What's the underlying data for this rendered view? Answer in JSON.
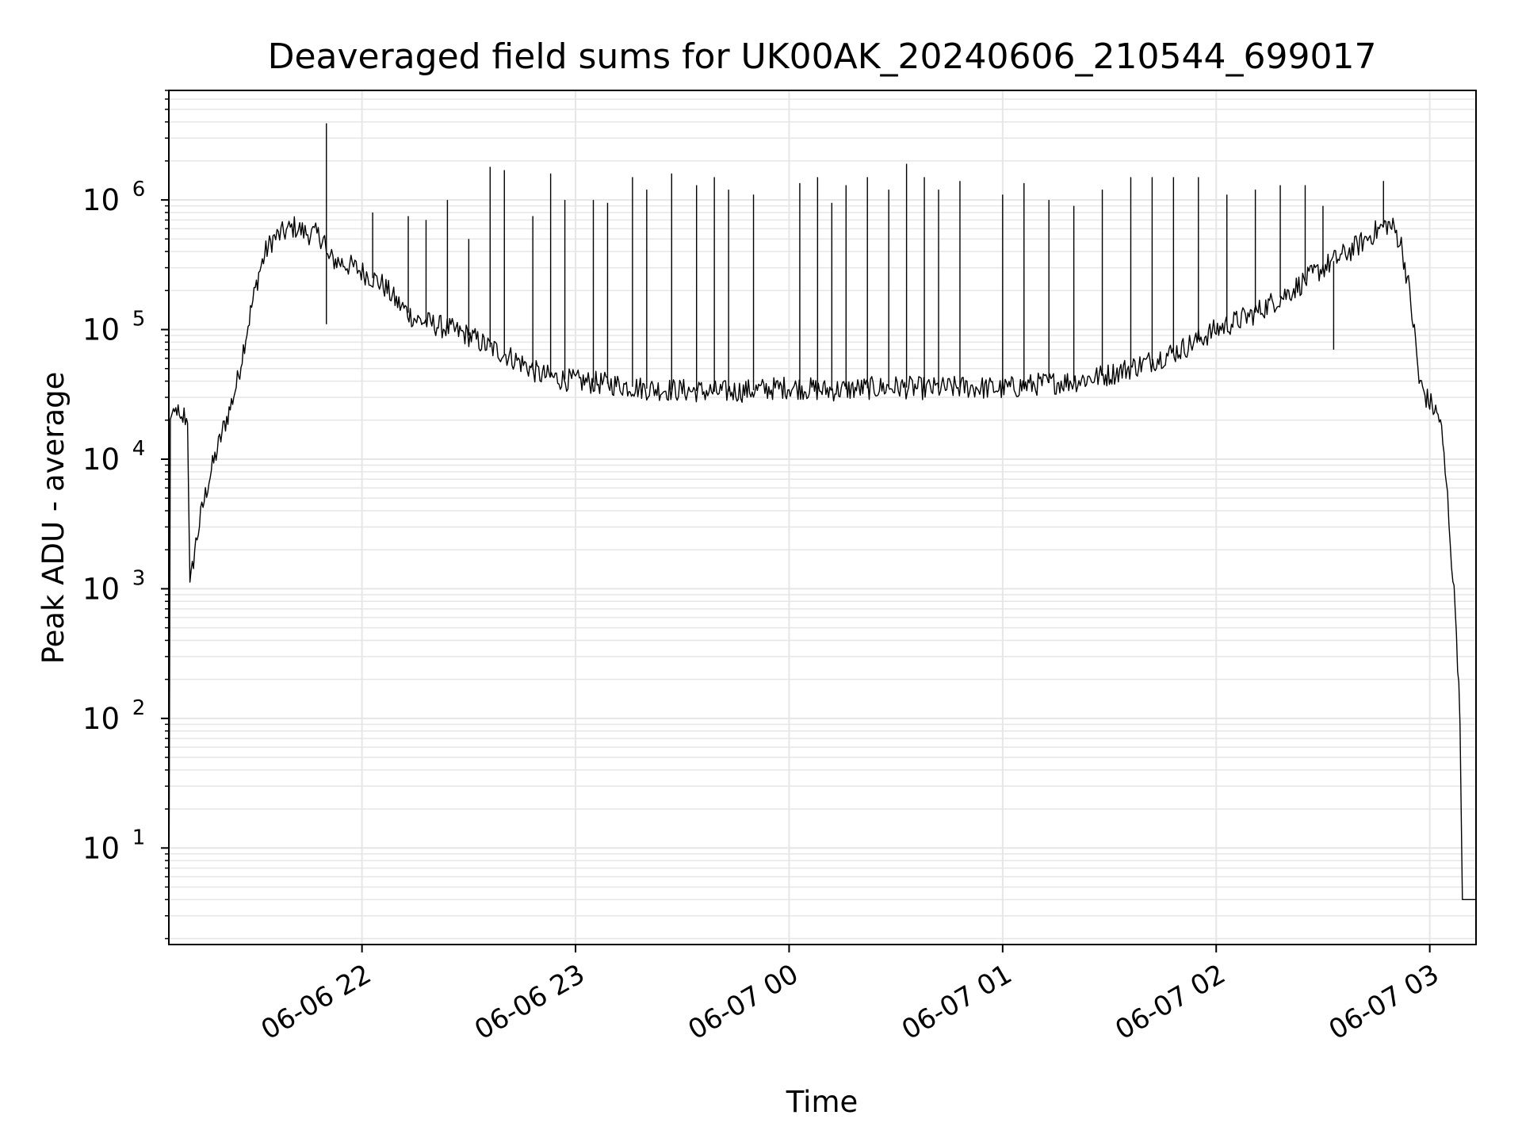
{
  "chart_data": {
    "type": "line",
    "title": "Deaveraged field sums for UK00AK_20240606_210544_699017",
    "xlabel": "Time",
    "ylabel": "Peak ADU - average",
    "yscale": "log",
    "xlim": [
      "2024-06-06 21:05:44",
      "2024-06-07 03:13:00"
    ],
    "ylim": [
      1.8,
      7000000
    ],
    "grid": true,
    "legend": "none",
    "line_color": "#000000",
    "grid_color": "#e6e6e6",
    "x_ticks": [
      {
        "t": "2024-06-06 22:00:00",
        "label": "06-06 22"
      },
      {
        "t": "2024-06-06 23:00:00",
        "label": "06-06 23"
      },
      {
        "t": "2024-06-07 00:00:00",
        "label": "06-07 00"
      },
      {
        "t": "2024-06-07 01:00:00",
        "label": "06-07 01"
      },
      {
        "t": "2024-06-07 02:00:00",
        "label": "06-07 02"
      },
      {
        "t": "2024-06-07 03:00:00",
        "label": "06-07 03"
      }
    ],
    "y_ticks": [
      {
        "value": 10,
        "base": "10",
        "exp": "1"
      },
      {
        "value": 100,
        "base": "10",
        "exp": "2"
      },
      {
        "value": 1000,
        "base": "10",
        "exp": "3"
      },
      {
        "value": 10000,
        "base": "10",
        "exp": "4"
      },
      {
        "value": 100000,
        "base": "10",
        "exp": "5"
      },
      {
        "value": 1000000,
        "base": "10",
        "exp": "6"
      }
    ],
    "series": [
      {
        "points": [
          [
            "2024-06-06 21:05:44",
            2
          ],
          [
            "2024-06-06 21:06:10",
            22000
          ],
          [
            "2024-06-06 21:07:00",
            20000
          ],
          [
            "2024-06-06 21:08:00",
            25000
          ],
          [
            "2024-06-06 21:09:00",
            18000
          ],
          [
            "2024-06-06 21:10:00",
            22000
          ],
          [
            "2024-06-06 21:11:00",
            19000
          ],
          [
            "2024-06-06 21:11:40",
            1000
          ],
          [
            "2024-06-06 21:13:00",
            2000
          ],
          [
            "2024-06-06 21:15:00",
            4000
          ],
          [
            "2024-06-06 21:17:00",
            7000
          ],
          [
            "2024-06-06 21:19:00",
            11000
          ],
          [
            "2024-06-06 21:21:00",
            17000
          ],
          [
            "2024-06-06 21:23:00",
            25000
          ],
          [
            "2024-06-06 21:25:00",
            40000
          ],
          [
            "2024-06-06 21:27:00",
            80000
          ],
          [
            "2024-06-06 21:29:00",
            150000
          ],
          [
            "2024-06-06 21:31:00",
            270000
          ],
          [
            "2024-06-06 21:33:00",
            400000
          ],
          [
            "2024-06-06 21:35:00",
            500000
          ],
          [
            "2024-06-06 21:38:00",
            560000
          ],
          [
            "2024-06-06 21:41:00",
            620000
          ],
          [
            "2024-06-06 21:44:00",
            560000
          ],
          [
            "2024-06-06 21:47:00",
            540000
          ],
          [
            "2024-06-06 21:49:30",
            500000
          ],
          [
            "2024-06-06 21:50:00",
            360000
          ],
          [
            "2024-06-06 21:54:00",
            330000
          ],
          [
            "2024-06-06 21:58:00",
            300000
          ],
          [
            "2024-06-06 22:02:00",
            260000
          ],
          [
            "2024-06-06 22:06:00",
            220000
          ],
          [
            "2024-06-06 22:10:00",
            160000
          ],
          [
            "2024-06-06 22:15:00",
            120000
          ],
          [
            "2024-06-06 22:20:00",
            110000
          ],
          [
            "2024-06-06 22:25:00",
            100000
          ],
          [
            "2024-06-06 22:30:00",
            90000
          ],
          [
            "2024-06-06 22:35:00",
            75000
          ],
          [
            "2024-06-06 22:40:00",
            65000
          ],
          [
            "2024-06-06 22:45:00",
            55000
          ],
          [
            "2024-06-06 22:50:00",
            45000
          ],
          [
            "2024-06-06 22:55:00",
            42000
          ],
          [
            "2024-06-06 23:00:00",
            40000
          ],
          [
            "2024-06-06 23:10:00",
            38000
          ],
          [
            "2024-06-06 23:20:00",
            35000
          ],
          [
            "2024-06-06 23:30:00",
            34000
          ],
          [
            "2024-06-06 23:40:00",
            33000
          ],
          [
            "2024-06-06 23:50:00",
            34000
          ],
          [
            "2024-06-07 00:00:00",
            36000
          ],
          [
            "2024-06-07 00:10:00",
            34000
          ],
          [
            "2024-06-07 00:20:00",
            35000
          ],
          [
            "2024-06-07 00:30:00",
            36000
          ],
          [
            "2024-06-07 00:40:00",
            35000
          ],
          [
            "2024-06-07 00:50:00",
            36000
          ],
          [
            "2024-06-07 01:00:00",
            35000
          ],
          [
            "2024-06-07 01:10:00",
            38000
          ],
          [
            "2024-06-07 01:20:00",
            40000
          ],
          [
            "2024-06-07 01:30:00",
            45000
          ],
          [
            "2024-06-07 01:40:00",
            55000
          ],
          [
            "2024-06-07 01:50:00",
            70000
          ],
          [
            "2024-06-07 02:00:00",
            100000
          ],
          [
            "2024-06-07 02:10:00",
            130000
          ],
          [
            "2024-06-07 02:20:00",
            190000
          ],
          [
            "2024-06-07 02:30:00",
            300000
          ],
          [
            "2024-06-07 02:36:00",
            380000
          ],
          [
            "2024-06-07 02:40:00",
            450000
          ],
          [
            "2024-06-07 02:44:00",
            550000
          ],
          [
            "2024-06-07 02:48:00",
            650000
          ],
          [
            "2024-06-07 02:50:00",
            600000
          ],
          [
            "2024-06-07 02:52:00",
            450000
          ],
          [
            "2024-06-07 02:54:00",
            220000
          ],
          [
            "2024-06-07 02:56:00",
            80000
          ],
          [
            "2024-06-07 02:57:00",
            40000
          ],
          [
            "2024-06-07 02:59:00",
            30000
          ],
          [
            "2024-06-07 03:01:00",
            25000
          ],
          [
            "2024-06-07 03:03:00",
            20000
          ],
          [
            "2024-06-07 03:05:00",
            5000
          ],
          [
            "2024-06-07 03:06:30",
            1200
          ],
          [
            "2024-06-07 03:07:30",
            500
          ],
          [
            "2024-06-07 03:08:30",
            90
          ],
          [
            "2024-06-07 03:09:10",
            4
          ],
          [
            "2024-06-07 03:13:00",
            4
          ]
        ]
      }
    ],
    "spikes": [
      [
        "2024-06-06 21:50:00",
        3900000
      ],
      [
        "2024-06-06 21:50:00",
        110000
      ],
      [
        "2024-06-06 22:03:00",
        800000
      ],
      [
        "2024-06-06 22:13:00",
        750000
      ],
      [
        "2024-06-06 22:18:00",
        700000
      ],
      [
        "2024-06-06 22:24:00",
        1000000
      ],
      [
        "2024-06-06 22:30:00",
        500000
      ],
      [
        "2024-06-06 22:36:00",
        1800000
      ],
      [
        "2024-06-06 22:40:00",
        1700000
      ],
      [
        "2024-06-06 22:48:00",
        750000
      ],
      [
        "2024-06-06 22:53:00",
        1600000
      ],
      [
        "2024-06-06 22:57:00",
        1000000
      ],
      [
        "2024-06-06 23:05:00",
        1000000
      ],
      [
        "2024-06-06 23:09:00",
        950000
      ],
      [
        "2024-06-06 23:16:00",
        1500000
      ],
      [
        "2024-06-06 23:20:00",
        1200000
      ],
      [
        "2024-06-06 23:27:00",
        1600000
      ],
      [
        "2024-06-06 23:34:00",
        1300000
      ],
      [
        "2024-06-06 23:39:00",
        1500000
      ],
      [
        "2024-06-06 23:43:00",
        1200000
      ],
      [
        "2024-06-06 23:50:00",
        1100000
      ],
      [
        "2024-06-07 00:03:00",
        1350000
      ],
      [
        "2024-06-07 00:08:00",
        1500000
      ],
      [
        "2024-06-07 00:12:00",
        950000
      ],
      [
        "2024-06-07 00:16:00",
        1300000
      ],
      [
        "2024-06-07 00:22:00",
        1500000
      ],
      [
        "2024-06-07 00:28:00",
        1200000
      ],
      [
        "2024-06-07 00:33:00",
        1900000
      ],
      [
        "2024-06-07 00:38:00",
        1500000
      ],
      [
        "2024-06-07 00:42:00",
        1200000
      ],
      [
        "2024-06-07 00:48:00",
        1400000
      ],
      [
        "2024-06-07 01:00:00",
        1100000
      ],
      [
        "2024-06-07 01:06:00",
        1350000
      ],
      [
        "2024-06-07 01:13:00",
        1000000
      ],
      [
        "2024-06-07 01:20:00",
        900000
      ],
      [
        "2024-06-07 01:28:00",
        1200000
      ],
      [
        "2024-06-07 01:36:00",
        1500000
      ],
      [
        "2024-06-07 01:42:00",
        1500000
      ],
      [
        "2024-06-07 01:48:00",
        1500000
      ],
      [
        "2024-06-07 01:55:00",
        1500000
      ],
      [
        "2024-06-07 02:03:00",
        1100000
      ],
      [
        "2024-06-07 02:11:00",
        1200000
      ],
      [
        "2024-06-07 02:18:00",
        1300000
      ],
      [
        "2024-06-07 02:25:00",
        1300000
      ],
      [
        "2024-06-07 02:30:00",
        900000
      ],
      [
        "2024-06-07 02:47:00",
        1400000
      ],
      [
        "2024-06-07 02:33:00",
        70000
      ]
    ]
  }
}
